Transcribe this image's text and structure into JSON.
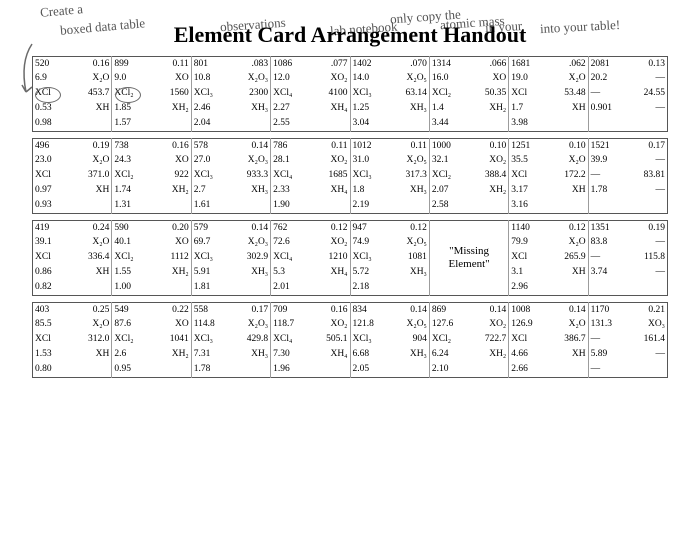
{
  "title": "Element Card Arrangement Handout",
  "handwritten": {
    "line1": "Create a",
    "line2": "boxed data table",
    "line3": "under data",
    "line4": "observations",
    "line5": "in your",
    "line6": "lab notebook",
    "line7": "only copy the",
    "line8": "atomic mass",
    "line9": "into your table!"
  },
  "hw_color": "#555555",
  "border_color": "#565656",
  "cell_border_color": "#9c9c9c",
  "font_family": "Times New Roman",
  "circled_cells": [
    {
      "row_block": 0,
      "sub_row": 1,
      "col": 0,
      "text": "6.9"
    },
    {
      "row_block": 0,
      "sub_row": 1,
      "col": 2,
      "text": "9.0"
    }
  ],
  "missing_label": "\"Missing Element\"",
  "row_blocks": [
    {
      "cols": 8,
      "rows": [
        [
          [
            "520",
            "0.16"
          ],
          [
            "899",
            "0.11"
          ],
          [
            "801",
            ".083"
          ],
          [
            "1086",
            ".077"
          ],
          [
            "1402",
            ".070"
          ],
          [
            "1314",
            ".066"
          ],
          [
            "1681",
            ".062"
          ],
          [
            "2081",
            "0.13"
          ]
        ],
        [
          [
            "6.9",
            "X₂O"
          ],
          [
            "9.0",
            "XO"
          ],
          [
            "10.8",
            "X₂O₃"
          ],
          [
            "12.0",
            "XO₂"
          ],
          [
            "14.0",
            "X₂O₅"
          ],
          [
            "16.0",
            "XO"
          ],
          [
            "19.0",
            "X₂O"
          ],
          [
            "20.2",
            "—"
          ]
        ],
        [
          [
            "XCl",
            "453.7"
          ],
          [
            "XCl₂",
            "1560"
          ],
          [
            "XCl₃",
            "2300"
          ],
          [
            "XCl₄",
            "4100"
          ],
          [
            "XCl₃",
            "63.14"
          ],
          [
            "XCl₂",
            "50.35"
          ],
          [
            "XCl",
            "53.48"
          ],
          [
            "—",
            "24.55"
          ]
        ],
        [
          [
            "0.53",
            "XH"
          ],
          [
            "1.85",
            "XH₂"
          ],
          [
            "2.46",
            "XH₃"
          ],
          [
            "2.27",
            "XH₄"
          ],
          [
            "1.25",
            "XH₃"
          ],
          [
            "1.4",
            "XH₂"
          ],
          [
            "1.7",
            "XH"
          ],
          [
            "0.901",
            "—"
          ]
        ],
        [
          [
            "0.98",
            ""
          ],
          [
            "1.57",
            ""
          ],
          [
            "2.04",
            ""
          ],
          [
            "2.55",
            ""
          ],
          [
            "3.04",
            ""
          ],
          [
            "3.44",
            ""
          ],
          [
            "3.98",
            ""
          ],
          [
            "",
            ""
          ]
        ]
      ]
    },
    {
      "cols": 8,
      "rows": [
        [
          [
            "496",
            "0.19"
          ],
          [
            "738",
            "0.16"
          ],
          [
            "578",
            "0.14"
          ],
          [
            "786",
            "0.11"
          ],
          [
            "1012",
            "0.11"
          ],
          [
            "1000",
            "0.10"
          ],
          [
            "1251",
            "0.10"
          ],
          [
            "1521",
            "0.17"
          ]
        ],
        [
          [
            "23.0",
            "X₂O"
          ],
          [
            "24.3",
            "XO"
          ],
          [
            "27.0",
            "X₂O₃"
          ],
          [
            "28.1",
            "XO₂"
          ],
          [
            "31.0",
            "X₂O₅"
          ],
          [
            "32.1",
            "XO₂"
          ],
          [
            "35.5",
            "X₂O"
          ],
          [
            "39.9",
            "—"
          ]
        ],
        [
          [
            "XCl",
            "371.0"
          ],
          [
            "XCl₂",
            "922"
          ],
          [
            "XCl₃",
            "933.3"
          ],
          [
            "XCl₄",
            "1685"
          ],
          [
            "XCl₃",
            "317.3"
          ],
          [
            "XCl₂",
            "388.4"
          ],
          [
            "XCl",
            "172.2"
          ],
          [
            "—",
            "83.81"
          ]
        ],
        [
          [
            "0.97",
            "XH"
          ],
          [
            "1.74",
            "XH₂"
          ],
          [
            "2.7",
            "XH₃"
          ],
          [
            "2.33",
            "XH₄"
          ],
          [
            "1.8",
            "XH₃"
          ],
          [
            "2.07",
            "XH₂"
          ],
          [
            "3.17",
            "XH"
          ],
          [
            "1.78",
            "—"
          ]
        ],
        [
          [
            "0.93",
            ""
          ],
          [
            "1.31",
            ""
          ],
          [
            "1.61",
            ""
          ],
          [
            "1.90",
            ""
          ],
          [
            "2.19",
            ""
          ],
          [
            "2.58",
            ""
          ],
          [
            "3.16",
            ""
          ],
          [
            "",
            ""
          ]
        ]
      ]
    },
    {
      "cols": 8,
      "missing_col": 5,
      "rows": [
        [
          [
            "419",
            "0.24"
          ],
          [
            "590",
            "0.20"
          ],
          [
            "579",
            "0.14"
          ],
          [
            "762",
            "0.12"
          ],
          [
            "947",
            "0.12"
          ],
          [
            "",
            ""
          ],
          [
            "1140",
            "0.12"
          ],
          [
            "1351",
            "0.19"
          ]
        ],
        [
          [
            "39.1",
            "X₂O"
          ],
          [
            "40.1",
            "XO"
          ],
          [
            "69.7",
            "X₂O₃"
          ],
          [
            "72.6",
            "XO₂"
          ],
          [
            "74.9",
            "X₂O₅"
          ],
          [
            "",
            ""
          ],
          [
            "79.9",
            "X₂O"
          ],
          [
            "83.8",
            "—"
          ]
        ],
        [
          [
            "XCl",
            "336.4"
          ],
          [
            "XCl₂",
            "1112"
          ],
          [
            "XCl₃",
            "302.9"
          ],
          [
            "XCl₄",
            "1210"
          ],
          [
            "XCl₃",
            "1081"
          ],
          [
            "",
            ""
          ],
          [
            "XCl",
            "265.9"
          ],
          [
            "—",
            "115.8"
          ]
        ],
        [
          [
            "0.86",
            "XH"
          ],
          [
            "1.55",
            "XH₂"
          ],
          [
            "5.91",
            "XH₃"
          ],
          [
            "5.3",
            "XH₄"
          ],
          [
            "5.72",
            "XH₃"
          ],
          [
            "",
            ""
          ],
          [
            "3.1",
            "XH"
          ],
          [
            "3.74",
            "—"
          ]
        ],
        [
          [
            "0.82",
            ""
          ],
          [
            "1.00",
            ""
          ],
          [
            "1.81",
            ""
          ],
          [
            "2.01",
            ""
          ],
          [
            "2.18",
            ""
          ],
          [
            "",
            ""
          ],
          [
            "2.96",
            ""
          ],
          [
            "",
            ""
          ]
        ]
      ]
    },
    {
      "cols": 8,
      "rows": [
        [
          [
            "403",
            "0.25"
          ],
          [
            "549",
            "0.22"
          ],
          [
            "558",
            "0.17"
          ],
          [
            "709",
            "0.16"
          ],
          [
            "834",
            "0.14"
          ],
          [
            "869",
            "0.14"
          ],
          [
            "1008",
            "0.14"
          ],
          [
            "1170",
            "0.21"
          ]
        ],
        [
          [
            "85.5",
            "X₂O"
          ],
          [
            "87.6",
            "XO"
          ],
          [
            "114.8",
            "X₂O₃"
          ],
          [
            "118.7",
            "XO₂"
          ],
          [
            "121.8",
            "X₂O₅"
          ],
          [
            "127.6",
            "XO₂"
          ],
          [
            "126.9",
            "X₂O"
          ],
          [
            "131.3",
            "XO₃"
          ]
        ],
        [
          [
            "XCl",
            "312.0"
          ],
          [
            "XCl₂",
            "1041"
          ],
          [
            "XCl₃",
            "429.8"
          ],
          [
            "XCl₄",
            "505.1"
          ],
          [
            "XCl₃",
            "904"
          ],
          [
            "XCl₂",
            "722.7"
          ],
          [
            "XCl",
            "386.7"
          ],
          [
            "—",
            "161.4"
          ]
        ],
        [
          [
            "1.53",
            "XH"
          ],
          [
            "2.6",
            "XH₂"
          ],
          [
            "7.31",
            "XH₃"
          ],
          [
            "7.30",
            "XH₄"
          ],
          [
            "6.68",
            "XH₃"
          ],
          [
            "6.24",
            "XH₂"
          ],
          [
            "4.66",
            "XH"
          ],
          [
            "5.89",
            "—"
          ]
        ],
        [
          [
            "0.80",
            ""
          ],
          [
            "0.95",
            ""
          ],
          [
            "1.78",
            ""
          ],
          [
            "1.96",
            ""
          ],
          [
            "2.05",
            ""
          ],
          [
            "2.10",
            ""
          ],
          [
            "2.66",
            ""
          ],
          [
            "—",
            ""
          ]
        ]
      ]
    }
  ]
}
